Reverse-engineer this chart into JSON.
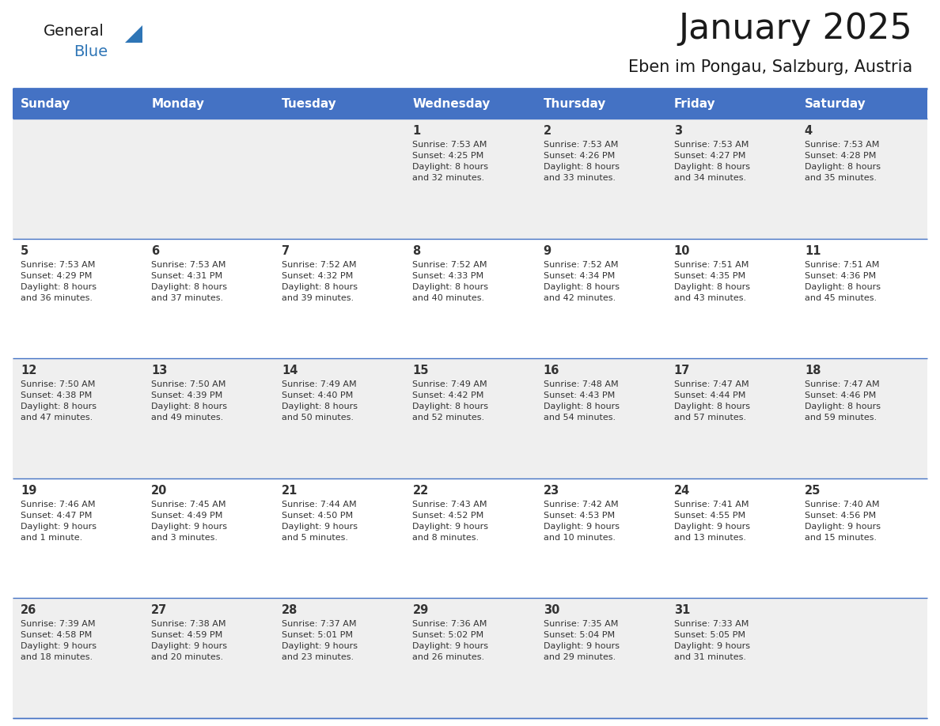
{
  "title": "January 2025",
  "subtitle": "Eben im Pongau, Salzburg, Austria",
  "days_of_week": [
    "Sunday",
    "Monday",
    "Tuesday",
    "Wednesday",
    "Thursday",
    "Friday",
    "Saturday"
  ],
  "header_bg": "#4472C4",
  "header_text": "#FFFFFF",
  "cell_bg_odd": "#EFEFEF",
  "cell_bg_even": "#FFFFFF",
  "cell_text": "#333333",
  "border_color": "#4472C4",
  "title_color": "#1a1a1a",
  "subtitle_color": "#1a1a1a",
  "logo_general_color": "#1a1a1a",
  "logo_blue_color": "#2E75B6",
  "weeks": [
    [
      {
        "day": null,
        "info": null
      },
      {
        "day": null,
        "info": null
      },
      {
        "day": null,
        "info": null
      },
      {
        "day": 1,
        "info": "Sunrise: 7:53 AM\nSunset: 4:25 PM\nDaylight: 8 hours\nand 32 minutes."
      },
      {
        "day": 2,
        "info": "Sunrise: 7:53 AM\nSunset: 4:26 PM\nDaylight: 8 hours\nand 33 minutes."
      },
      {
        "day": 3,
        "info": "Sunrise: 7:53 AM\nSunset: 4:27 PM\nDaylight: 8 hours\nand 34 minutes."
      },
      {
        "day": 4,
        "info": "Sunrise: 7:53 AM\nSunset: 4:28 PM\nDaylight: 8 hours\nand 35 minutes."
      }
    ],
    [
      {
        "day": 5,
        "info": "Sunrise: 7:53 AM\nSunset: 4:29 PM\nDaylight: 8 hours\nand 36 minutes."
      },
      {
        "day": 6,
        "info": "Sunrise: 7:53 AM\nSunset: 4:31 PM\nDaylight: 8 hours\nand 37 minutes."
      },
      {
        "day": 7,
        "info": "Sunrise: 7:52 AM\nSunset: 4:32 PM\nDaylight: 8 hours\nand 39 minutes."
      },
      {
        "day": 8,
        "info": "Sunrise: 7:52 AM\nSunset: 4:33 PM\nDaylight: 8 hours\nand 40 minutes."
      },
      {
        "day": 9,
        "info": "Sunrise: 7:52 AM\nSunset: 4:34 PM\nDaylight: 8 hours\nand 42 minutes."
      },
      {
        "day": 10,
        "info": "Sunrise: 7:51 AM\nSunset: 4:35 PM\nDaylight: 8 hours\nand 43 minutes."
      },
      {
        "day": 11,
        "info": "Sunrise: 7:51 AM\nSunset: 4:36 PM\nDaylight: 8 hours\nand 45 minutes."
      }
    ],
    [
      {
        "day": 12,
        "info": "Sunrise: 7:50 AM\nSunset: 4:38 PM\nDaylight: 8 hours\nand 47 minutes."
      },
      {
        "day": 13,
        "info": "Sunrise: 7:50 AM\nSunset: 4:39 PM\nDaylight: 8 hours\nand 49 minutes."
      },
      {
        "day": 14,
        "info": "Sunrise: 7:49 AM\nSunset: 4:40 PM\nDaylight: 8 hours\nand 50 minutes."
      },
      {
        "day": 15,
        "info": "Sunrise: 7:49 AM\nSunset: 4:42 PM\nDaylight: 8 hours\nand 52 minutes."
      },
      {
        "day": 16,
        "info": "Sunrise: 7:48 AM\nSunset: 4:43 PM\nDaylight: 8 hours\nand 54 minutes."
      },
      {
        "day": 17,
        "info": "Sunrise: 7:47 AM\nSunset: 4:44 PM\nDaylight: 8 hours\nand 57 minutes."
      },
      {
        "day": 18,
        "info": "Sunrise: 7:47 AM\nSunset: 4:46 PM\nDaylight: 8 hours\nand 59 minutes."
      }
    ],
    [
      {
        "day": 19,
        "info": "Sunrise: 7:46 AM\nSunset: 4:47 PM\nDaylight: 9 hours\nand 1 minute."
      },
      {
        "day": 20,
        "info": "Sunrise: 7:45 AM\nSunset: 4:49 PM\nDaylight: 9 hours\nand 3 minutes."
      },
      {
        "day": 21,
        "info": "Sunrise: 7:44 AM\nSunset: 4:50 PM\nDaylight: 9 hours\nand 5 minutes."
      },
      {
        "day": 22,
        "info": "Sunrise: 7:43 AM\nSunset: 4:52 PM\nDaylight: 9 hours\nand 8 minutes."
      },
      {
        "day": 23,
        "info": "Sunrise: 7:42 AM\nSunset: 4:53 PM\nDaylight: 9 hours\nand 10 minutes."
      },
      {
        "day": 24,
        "info": "Sunrise: 7:41 AM\nSunset: 4:55 PM\nDaylight: 9 hours\nand 13 minutes."
      },
      {
        "day": 25,
        "info": "Sunrise: 7:40 AM\nSunset: 4:56 PM\nDaylight: 9 hours\nand 15 minutes."
      }
    ],
    [
      {
        "day": 26,
        "info": "Sunrise: 7:39 AM\nSunset: 4:58 PM\nDaylight: 9 hours\nand 18 minutes."
      },
      {
        "day": 27,
        "info": "Sunrise: 7:38 AM\nSunset: 4:59 PM\nDaylight: 9 hours\nand 20 minutes."
      },
      {
        "day": 28,
        "info": "Sunrise: 7:37 AM\nSunset: 5:01 PM\nDaylight: 9 hours\nand 23 minutes."
      },
      {
        "day": 29,
        "info": "Sunrise: 7:36 AM\nSunset: 5:02 PM\nDaylight: 9 hours\nand 26 minutes."
      },
      {
        "day": 30,
        "info": "Sunrise: 7:35 AM\nSunset: 5:04 PM\nDaylight: 9 hours\nand 29 minutes."
      },
      {
        "day": 31,
        "info": "Sunrise: 7:33 AM\nSunset: 5:05 PM\nDaylight: 9 hours\nand 31 minutes."
      },
      {
        "day": null,
        "info": null
      }
    ]
  ]
}
